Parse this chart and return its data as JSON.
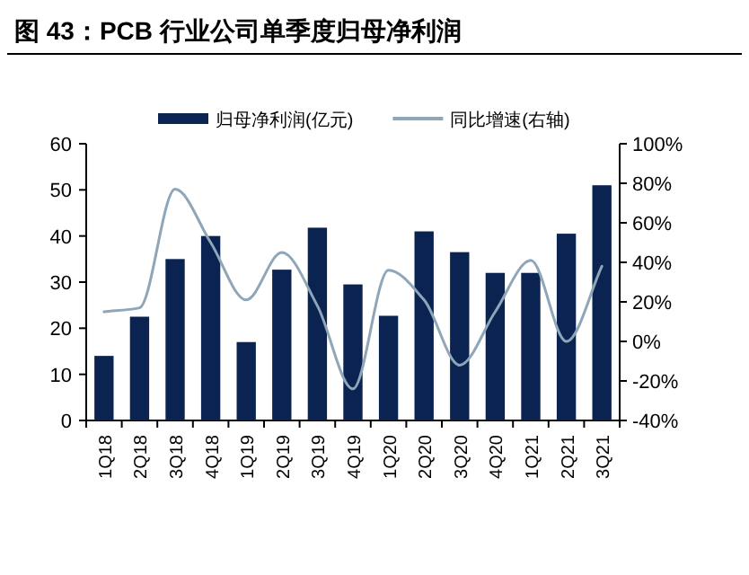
{
  "chart_data": {
    "type": "bar",
    "title": "图 43：PCB 行业公司单季度归母净利润",
    "categories": [
      "1Q18",
      "2Q18",
      "3Q18",
      "4Q18",
      "1Q19",
      "2Q19",
      "3Q19",
      "4Q19",
      "1Q20",
      "2Q20",
      "3Q20",
      "4Q20",
      "1Q21",
      "2Q21",
      "3Q21"
    ],
    "series": [
      {
        "name": "归母净利润(亿元)",
        "color": "#0b2351",
        "values": [
          14,
          22.5,
          35,
          40,
          17,
          32.7,
          41.8,
          29.5,
          22.7,
          41,
          36.5,
          32,
          32,
          40.5,
          51
        ]
      },
      {
        "name": "同比增速(右轴)",
        "type": "line",
        "axis": "y2",
        "color": "#8fa5b8",
        "values": [
          15,
          17,
          77,
          50,
          21,
          45,
          18,
          -24,
          36,
          21,
          -12,
          15,
          41,
          0,
          38
        ]
      }
    ],
    "ylim": [
      0,
      60
    ],
    "yticks": [
      0,
      10,
      20,
      30,
      40,
      50,
      60
    ],
    "y2lim": [
      -40,
      100
    ],
    "y2ticks": [
      {
        "value": -40,
        "label": "-40%"
      },
      {
        "value": -20,
        "label": "-20%"
      },
      {
        "value": 0,
        "label": "0%"
      },
      {
        "value": 20,
        "label": "20%"
      },
      {
        "value": 40,
        "label": "40%"
      },
      {
        "value": 60,
        "label": "60%"
      },
      {
        "value": 80,
        "label": "80%"
      },
      {
        "value": 100,
        "label": "100%"
      }
    ],
    "legend": "top",
    "grid": false
  }
}
